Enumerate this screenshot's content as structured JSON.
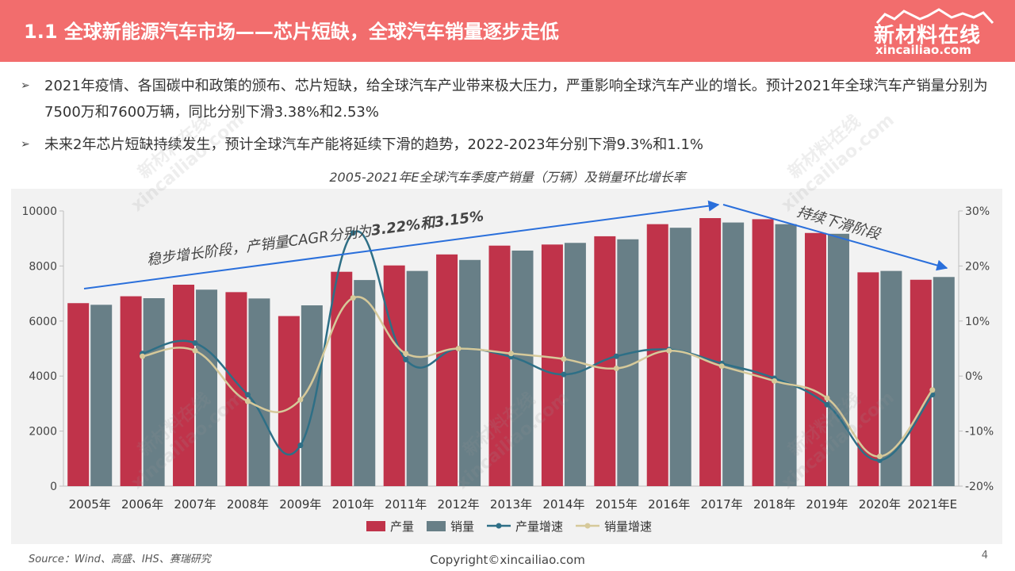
{
  "header": {
    "title": "1.1 全球新能源汽车市场——芯片短缺，全球汽车销量逐步走低",
    "logo_name": "新材料在线",
    "logo_url": "xincailiao.com"
  },
  "bullets": [
    "2021年疫情、各国碳中和政策的颁布、芯片短缺，给全球汽车产业带来极大压力，严重影响全球汽车产业的增长。预计2021年全球汽车产销量分别为7500万和7600万辆，同比分别下滑3.38%和2.53%",
    "未来2年芯片短缺持续发生，预计全球汽车产能将延续下滑的趋势，2022-2023年分别下滑9.3%和1.1%"
  ],
  "bullet_marker": "➢",
  "chart_data": {
    "type": "bar",
    "title": "2005-2021年E全球汽车季度产销量（万辆）及销量环比增长率",
    "categories": [
      "2005年",
      "2006年",
      "2007年",
      "2008年",
      "2009年",
      "2010年",
      "2011年",
      "2012年",
      "2013年",
      "2014年",
      "2015年",
      "2016年",
      "2017年",
      "2018年",
      "2019年",
      "2020年",
      "2021年E"
    ],
    "y_left_ticks": [
      "0",
      "2000",
      "4000",
      "6000",
      "8000",
      "10000"
    ],
    "y_right_ticks": [
      "-20%",
      "-10%",
      "0%",
      "10%",
      "20%",
      "30%"
    ],
    "ylim_left": [
      0,
      10000
    ],
    "ylim_right": [
      -20,
      30
    ],
    "series": [
      {
        "name": "产量",
        "type": "bar",
        "color": "#c0334a",
        "axis": "left",
        "values": [
          6650,
          6900,
          7320,
          7050,
          6180,
          7790,
          8020,
          8420,
          8740,
          8780,
          9080,
          9520,
          9740,
          9700,
          9200,
          7770,
          7500
        ]
      },
      {
        "name": "销量",
        "type": "bar",
        "color": "#687f87",
        "axis": "left",
        "values": [
          6590,
          6830,
          7140,
          6820,
          6570,
          7490,
          7820,
          8220,
          8560,
          8840,
          8970,
          9390,
          9580,
          9520,
          9170,
          7820,
          7600
        ]
      },
      {
        "name": "产量增速",
        "type": "line",
        "color": "#2e6f86",
        "axis": "right",
        "values": [
          null,
          4.1,
          6.0,
          -3.4,
          -12.6,
          26.0,
          3.0,
          5.0,
          3.5,
          0.3,
          3.6,
          4.8,
          2.3,
          -0.4,
          -5.2,
          -15.3,
          -3.38
        ]
      },
      {
        "name": "销量增速",
        "type": "line",
        "color": "#d6c99a",
        "axis": "right",
        "values": [
          null,
          3.6,
          4.6,
          -4.6,
          -4.3,
          14.2,
          4.1,
          5.0,
          4.1,
          3.1,
          1.4,
          4.6,
          1.8,
          -0.9,
          -4.0,
          -14.6,
          -2.53
        ]
      }
    ],
    "annotations": {
      "stage1_prefix": "稳步增长阶段，产销量CAGR分别为",
      "stage1_values": "3.22%和3.15%",
      "stage2": "持续下滑阶段"
    },
    "legend_position": "bottom",
    "grid": false
  },
  "footer": {
    "source": "Source：Wind、高盛、IHS、赛瑞研究",
    "copyright": "Copyright©xincailiao.com",
    "page": "4"
  },
  "watermark": {
    "line1": "新材料在线",
    "line2": "xincailiao.com"
  }
}
